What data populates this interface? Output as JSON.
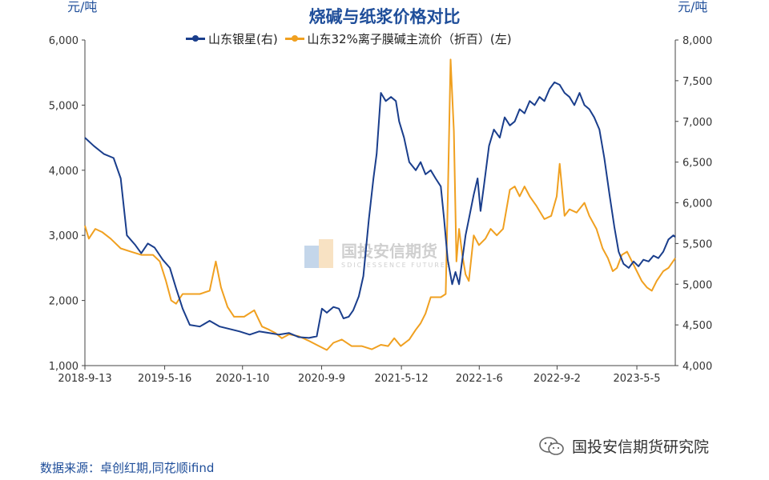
{
  "chart_data": {
    "type": "line",
    "title": "烧碱与纸浆价格对比",
    "left_unit": "元/吨",
    "right_unit": "元/吨",
    "x_ticks": [
      "2018-9-13",
      "2019-5-16",
      "2020-1-10",
      "2020-9-9",
      "2021-5-12",
      "2022-1-6",
      "2022-9-2",
      "2023-5-5"
    ],
    "x_range": [
      "2018-09-13",
      "2023-08-31"
    ],
    "y_left": {
      "min": 1000,
      "max": 6000,
      "ticks": [
        "1,000",
        "2,000",
        "3,000",
        "4,000",
        "5,000",
        "6,000"
      ]
    },
    "y_right": {
      "min": 4000,
      "max": 8000,
      "ticks": [
        "4,000",
        "4,500",
        "5,000",
        "5,500",
        "6,000",
        "6,500",
        "7,000",
        "7,500",
        "8,000"
      ]
    },
    "grid": false,
    "legend_position": "top",
    "series": [
      {
        "name": "山东银星(右)",
        "axis": "right",
        "color": "#1a3e8c",
        "points": [
          [
            "2018-09-13",
            6800
          ],
          [
            "2018-10-10",
            6700
          ],
          [
            "2018-11-10",
            6600
          ],
          [
            "2018-12-10",
            6550
          ],
          [
            "2019-01-01",
            6300
          ],
          [
            "2019-01-20",
            5600
          ],
          [
            "2019-02-15",
            5480
          ],
          [
            "2019-03-05",
            5380
          ],
          [
            "2019-03-25",
            5500
          ],
          [
            "2019-04-15",
            5450
          ],
          [
            "2019-05-10",
            5300
          ],
          [
            "2019-06-01",
            5200
          ],
          [
            "2019-06-20",
            4950
          ],
          [
            "2019-07-10",
            4700
          ],
          [
            "2019-08-01",
            4500
          ],
          [
            "2019-09-01",
            4480
          ],
          [
            "2019-10-01",
            4550
          ],
          [
            "2019-11-01",
            4480
          ],
          [
            "2019-12-01",
            4450
          ],
          [
            "2020-01-01",
            4420
          ],
          [
            "2020-02-01",
            4380
          ],
          [
            "2020-03-01",
            4420
          ],
          [
            "2020-04-01",
            4400
          ],
          [
            "2020-05-01",
            4380
          ],
          [
            "2020-06-01",
            4400
          ],
          [
            "2020-07-01",
            4350
          ],
          [
            "2020-08-01",
            4340
          ],
          [
            "2020-08-25",
            4360
          ],
          [
            "2020-09-10",
            4700
          ],
          [
            "2020-09-25",
            4650
          ],
          [
            "2020-10-15",
            4720
          ],
          [
            "2020-11-01",
            4700
          ],
          [
            "2020-11-15",
            4580
          ],
          [
            "2020-12-01",
            4600
          ],
          [
            "2020-12-15",
            4680
          ],
          [
            "2021-01-01",
            4850
          ],
          [
            "2021-01-15",
            5100
          ],
          [
            "2021-02-01",
            5800
          ],
          [
            "2021-02-15",
            6300
          ],
          [
            "2021-02-25",
            6600
          ],
          [
            "2021-03-10",
            7350
          ],
          [
            "2021-03-25",
            7250
          ],
          [
            "2021-04-10",
            7300
          ],
          [
            "2021-04-25",
            7250
          ],
          [
            "2021-05-05",
            7000
          ],
          [
            "2021-05-20",
            6800
          ],
          [
            "2021-06-05",
            6500
          ],
          [
            "2021-06-25",
            6400
          ],
          [
            "2021-07-10",
            6500
          ],
          [
            "2021-07-25",
            6350
          ],
          [
            "2021-08-10",
            6400
          ],
          [
            "2021-08-25",
            6300
          ],
          [
            "2021-09-10",
            6200
          ],
          [
            "2021-09-20",
            5800
          ],
          [
            "2021-10-01",
            5300
          ],
          [
            "2021-10-15",
            5000
          ],
          [
            "2021-10-25",
            5150
          ],
          [
            "2021-11-05",
            5000
          ],
          [
            "2021-11-15",
            5300
          ],
          [
            "2021-11-25",
            5600
          ],
          [
            "2021-12-05",
            5800
          ],
          [
            "2021-12-20",
            6100
          ],
          [
            "2022-01-01",
            6300
          ],
          [
            "2022-01-10",
            5900
          ],
          [
            "2022-01-20",
            6200
          ],
          [
            "2022-02-05",
            6700
          ],
          [
            "2022-02-20",
            6900
          ],
          [
            "2022-03-10",
            6800
          ],
          [
            "2022-03-25",
            7050
          ],
          [
            "2022-04-10",
            6950
          ],
          [
            "2022-04-25",
            7000
          ],
          [
            "2022-05-10",
            7150
          ],
          [
            "2022-05-25",
            7100
          ],
          [
            "2022-06-10",
            7250
          ],
          [
            "2022-06-25",
            7200
          ],
          [
            "2022-07-10",
            7300
          ],
          [
            "2022-07-25",
            7250
          ],
          [
            "2022-08-10",
            7400
          ],
          [
            "2022-08-25",
            7480
          ],
          [
            "2022-09-10",
            7450
          ],
          [
            "2022-09-25",
            7350
          ],
          [
            "2022-10-10",
            7300
          ],
          [
            "2022-10-25",
            7200
          ],
          [
            "2022-11-10",
            7350
          ],
          [
            "2022-11-25",
            7200
          ],
          [
            "2022-12-10",
            7150
          ],
          [
            "2022-12-25",
            7050
          ],
          [
            "2023-01-10",
            6900
          ],
          [
            "2023-01-25",
            6550
          ],
          [
            "2023-02-10",
            6100
          ],
          [
            "2023-02-25",
            5700
          ],
          [
            "2023-03-10",
            5400
          ],
          [
            "2023-03-25",
            5250
          ],
          [
            "2023-04-10",
            5200
          ],
          [
            "2023-04-25",
            5280
          ],
          [
            "2023-05-10",
            5220
          ],
          [
            "2023-05-25",
            5300
          ],
          [
            "2023-06-10",
            5280
          ],
          [
            "2023-06-25",
            5350
          ],
          [
            "2023-07-10",
            5320
          ],
          [
            "2023-07-25",
            5400
          ],
          [
            "2023-08-10",
            5550
          ],
          [
            "2023-08-25",
            5600
          ],
          [
            "2023-08-31",
            5580
          ]
        ]
      },
      {
        "name": "山东32%离子膜碱主流价（折百）(左)",
        "axis": "left",
        "color": "#f0a020",
        "points": [
          [
            "2018-09-13",
            3150
          ],
          [
            "2018-09-25",
            2950
          ],
          [
            "2018-10-15",
            3100
          ],
          [
            "2018-11-05",
            3050
          ],
          [
            "2018-12-01",
            2950
          ],
          [
            "2019-01-01",
            2800
          ],
          [
            "2019-02-01",
            2750
          ],
          [
            "2019-03-05",
            2700
          ],
          [
            "2019-04-10",
            2700
          ],
          [
            "2019-05-01",
            2600
          ],
          [
            "2019-05-20",
            2300
          ],
          [
            "2019-06-05",
            2000
          ],
          [
            "2019-06-20",
            1950
          ],
          [
            "2019-07-10",
            2100
          ],
          [
            "2019-08-01",
            2100
          ],
          [
            "2019-09-01",
            2100
          ],
          [
            "2019-10-01",
            2150
          ],
          [
            "2019-10-20",
            2600
          ],
          [
            "2019-11-05",
            2200
          ],
          [
            "2019-11-25",
            1900
          ],
          [
            "2019-12-15",
            1750
          ],
          [
            "2020-01-15",
            1750
          ],
          [
            "2020-02-15",
            1850
          ],
          [
            "2020-03-10",
            1600
          ],
          [
            "2020-04-01",
            1550
          ],
          [
            "2020-04-20",
            1500
          ],
          [
            "2020-05-10",
            1420
          ],
          [
            "2020-06-01",
            1480
          ],
          [
            "2020-07-01",
            1450
          ],
          [
            "2020-08-01",
            1380
          ],
          [
            "2020-09-01",
            1300
          ],
          [
            "2020-09-25",
            1240
          ],
          [
            "2020-10-15",
            1350
          ],
          [
            "2020-11-10",
            1400
          ],
          [
            "2020-12-10",
            1300
          ],
          [
            "2021-01-10",
            1300
          ],
          [
            "2021-02-10",
            1250
          ],
          [
            "2021-03-10",
            1320
          ],
          [
            "2021-04-01",
            1300
          ],
          [
            "2021-04-20",
            1420
          ],
          [
            "2021-05-10",
            1300
          ],
          [
            "2021-06-05",
            1400
          ],
          [
            "2021-06-25",
            1550
          ],
          [
            "2021-07-10",
            1650
          ],
          [
            "2021-07-25",
            1800
          ],
          [
            "2021-08-10",
            2050
          ],
          [
            "2021-08-25",
            2050
          ],
          [
            "2021-09-10",
            2050
          ],
          [
            "2021-09-25",
            2100
          ],
          [
            "2021-10-01",
            3500
          ],
          [
            "2021-10-10",
            5700
          ],
          [
            "2021-10-20",
            4600
          ],
          [
            "2021-10-28",
            2600
          ],
          [
            "2021-11-05",
            3100
          ],
          [
            "2021-11-15",
            2700
          ],
          [
            "2021-11-25",
            2400
          ],
          [
            "2021-12-05",
            2300
          ],
          [
            "2021-12-20",
            3000
          ],
          [
            "2022-01-05",
            2850
          ],
          [
            "2022-01-25",
            2950
          ],
          [
            "2022-02-10",
            3100
          ],
          [
            "2022-03-01",
            3000
          ],
          [
            "2022-03-20",
            3100
          ],
          [
            "2022-04-10",
            3700
          ],
          [
            "2022-04-25",
            3750
          ],
          [
            "2022-05-10",
            3600
          ],
          [
            "2022-05-25",
            3750
          ],
          [
            "2022-06-10",
            3600
          ],
          [
            "2022-07-01",
            3450
          ],
          [
            "2022-07-25",
            3250
          ],
          [
            "2022-08-15",
            3300
          ],
          [
            "2022-09-01",
            3600
          ],
          [
            "2022-09-10",
            4100
          ],
          [
            "2022-09-25",
            3300
          ],
          [
            "2022-10-10",
            3400
          ],
          [
            "2022-11-01",
            3350
          ],
          [
            "2022-11-25",
            3500
          ],
          [
            "2022-12-10",
            3300
          ],
          [
            "2023-01-01",
            3100
          ],
          [
            "2023-01-20",
            2800
          ],
          [
            "2023-02-05",
            2650
          ],
          [
            "2023-02-20",
            2450
          ],
          [
            "2023-03-05",
            2500
          ],
          [
            "2023-03-20",
            2700
          ],
          [
            "2023-04-05",
            2750
          ],
          [
            "2023-04-20",
            2600
          ],
          [
            "2023-05-05",
            2450
          ],
          [
            "2023-05-20",
            2300
          ],
          [
            "2023-06-05",
            2200
          ],
          [
            "2023-06-20",
            2150
          ],
          [
            "2023-07-05",
            2300
          ],
          [
            "2023-07-25",
            2450
          ],
          [
            "2023-08-10",
            2500
          ],
          [
            "2023-08-31",
            2650
          ]
        ]
      }
    ]
  },
  "source": "数据来源：卓创红期,同花顺ifind",
  "watermark": {
    "cn": "国投安信期货",
    "en": "SDIC ESSENCE FUTURES"
  },
  "brand": {
    "name": "国投安信期货研究院",
    "icon": "wechat-icon"
  }
}
